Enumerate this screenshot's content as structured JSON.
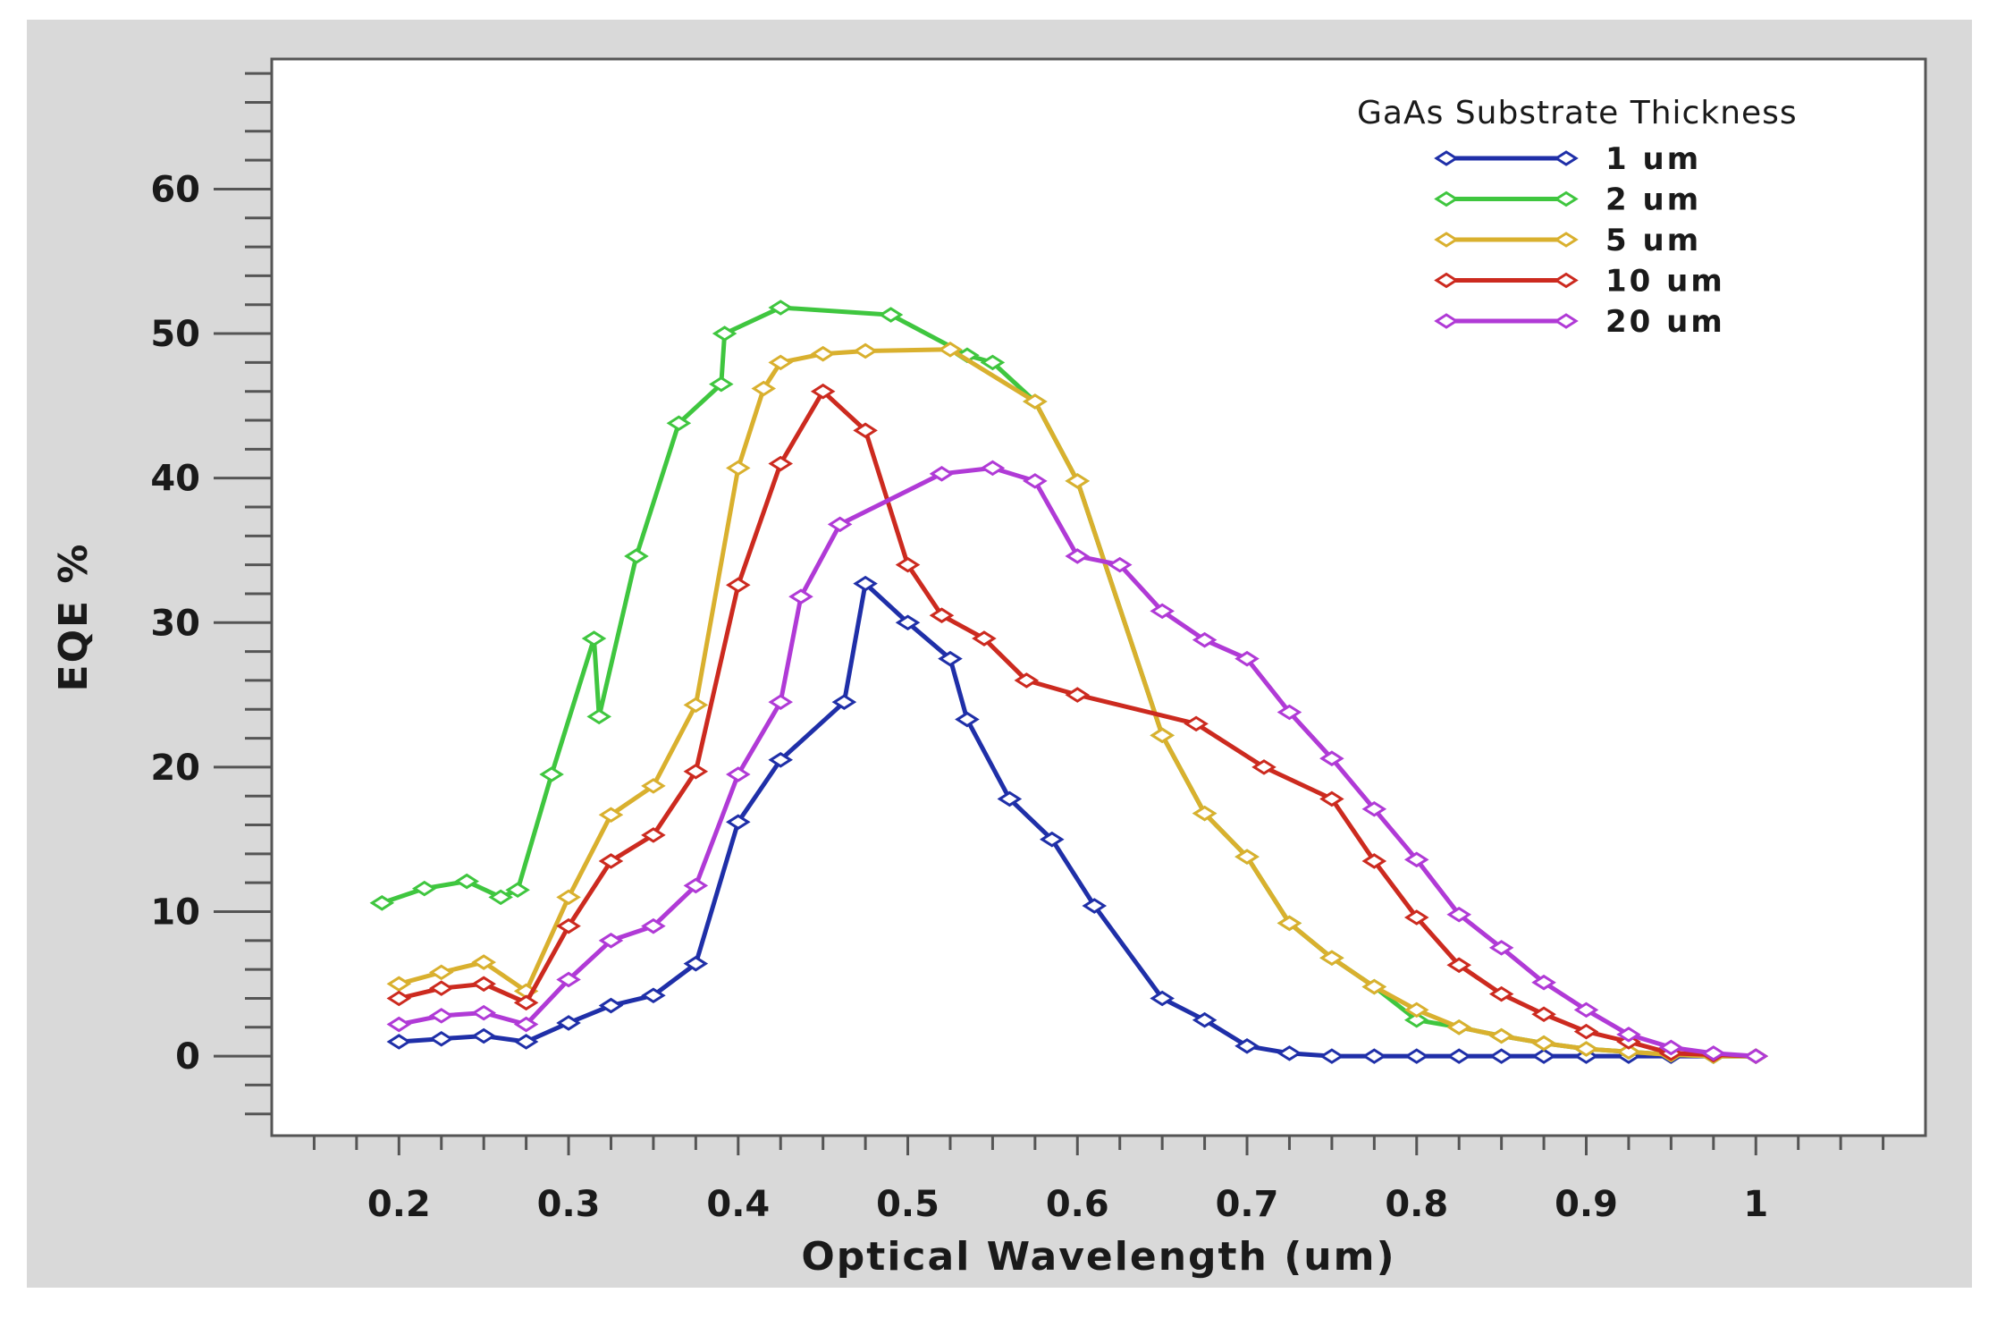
{
  "chart_data": {
    "type": "line",
    "title": "",
    "xlabel": "Optical Wavelength (um)",
    "ylabel": "EQE %",
    "xlim": [
      0.125,
      1.1
    ],
    "ylim": [
      -5.5,
      69
    ],
    "xticks": [
      0.2,
      0.3,
      0.4,
      0.5,
      0.6,
      0.7,
      0.8,
      0.9,
      1
    ],
    "xtick_labels": [
      "0.2",
      "0.3",
      "0.4",
      "0.5",
      "0.6",
      "0.7",
      "0.8",
      "0.9",
      "1"
    ],
    "yticks": [
      0,
      10,
      20,
      30,
      40,
      50,
      60
    ],
    "ytick_labels": [
      "0",
      "10",
      "20",
      "30",
      "40",
      "50",
      "60"
    ],
    "legend": {
      "title": "GaAs Substrate Thickness",
      "position": "top-right"
    },
    "series": [
      {
        "name": "1  um",
        "color": "#1f2fa8",
        "x": [
          0.2,
          0.225,
          0.25,
          0.275,
          0.3,
          0.325,
          0.35,
          0.375,
          0.4,
          0.425,
          0.4625,
          0.475,
          0.5,
          0.525,
          0.535,
          0.56,
          0.585,
          0.61,
          0.65,
          0.675,
          0.7,
          0.725,
          0.75,
          0.775,
          0.8,
          0.825,
          0.85,
          0.875,
          0.9,
          0.925,
          0.95,
          0.975,
          1.0
        ],
        "values": [
          1.0,
          1.2,
          1.4,
          1.0,
          2.3,
          3.5,
          4.2,
          6.4,
          16.2,
          20.5,
          24.5,
          32.7,
          30.0,
          27.5,
          23.3,
          17.8,
          15.0,
          10.4,
          4.0,
          2.5,
          0.7,
          0.2,
          0.0,
          0.0,
          0.0,
          0.0,
          0.0,
          0.0,
          0.0,
          0.0,
          0.0,
          0.0,
          0.0
        ]
      },
      {
        "name": "2  um",
        "color": "#3fc63f",
        "x": [
          0.19,
          0.215,
          0.24,
          0.26,
          0.27,
          0.29,
          0.315,
          0.318,
          0.34,
          0.365,
          0.39,
          0.392,
          0.425,
          0.49,
          0.535,
          0.55,
          0.575,
          0.6,
          0.65,
          0.675,
          0.7,
          0.725,
          0.75,
          0.775,
          0.8,
          0.825,
          0.85,
          0.875,
          0.9,
          0.925,
          0.95,
          0.975,
          1.0
        ],
        "values": [
          10.6,
          11.6,
          12.1,
          11.0,
          11.5,
          19.5,
          28.9,
          23.5,
          34.6,
          43.8,
          46.5,
          50.0,
          51.8,
          51.3,
          48.5,
          48.0,
          45.3,
          39.8,
          22.2,
          16.8,
          13.8,
          9.2,
          6.8,
          4.8,
          2.5,
          2.0,
          1.4,
          0.9,
          0.5,
          0.3,
          0.1,
          0.0,
          0.0
        ]
      },
      {
        "name": "5  um",
        "color": "#d9b02e",
        "x": [
          0.2,
          0.225,
          0.25,
          0.275,
          0.3,
          0.325,
          0.35,
          0.375,
          0.4,
          0.415,
          0.425,
          0.45,
          0.475,
          0.525,
          0.575,
          0.6,
          0.65,
          0.675,
          0.7,
          0.725,
          0.75,
          0.775,
          0.8,
          0.825,
          0.85,
          0.875,
          0.9,
          0.925,
          0.95,
          0.975,
          1.0
        ],
        "values": [
          5.0,
          5.8,
          6.5,
          4.5,
          11.0,
          16.7,
          18.7,
          24.3,
          40.7,
          46.2,
          48.0,
          48.6,
          48.8,
          48.9,
          45.3,
          39.8,
          22.2,
          16.8,
          13.8,
          9.2,
          6.8,
          4.8,
          3.2,
          2.0,
          1.4,
          0.9,
          0.5,
          0.3,
          0.1,
          0.0,
          0.0
        ]
      },
      {
        "name": "10 um",
        "color": "#cc2a1f",
        "x": [
          0.2,
          0.225,
          0.25,
          0.275,
          0.3,
          0.325,
          0.35,
          0.375,
          0.4,
          0.425,
          0.45,
          0.475,
          0.5,
          0.52,
          0.545,
          0.57,
          0.6,
          0.67,
          0.71,
          0.75,
          0.775,
          0.8,
          0.825,
          0.85,
          0.875,
          0.9,
          0.925,
          0.95,
          0.975,
          1.0
        ],
        "values": [
          4.0,
          4.7,
          5.0,
          3.7,
          9.0,
          13.5,
          15.3,
          19.7,
          32.6,
          41.0,
          46.0,
          43.3,
          34.0,
          30.5,
          28.9,
          26.0,
          25.0,
          23.0,
          20.0,
          17.8,
          13.5,
          9.6,
          6.3,
          4.3,
          2.9,
          1.7,
          1.0,
          0.2,
          0.1,
          0.0
        ]
      },
      {
        "name": "20 um",
        "color": "#b03ad6",
        "x": [
          0.2,
          0.225,
          0.25,
          0.275,
          0.3,
          0.325,
          0.35,
          0.375,
          0.4,
          0.425,
          0.437,
          0.46,
          0.52,
          0.55,
          0.575,
          0.6,
          0.625,
          0.65,
          0.675,
          0.7,
          0.725,
          0.75,
          0.775,
          0.8,
          0.825,
          0.85,
          0.875,
          0.9,
          0.925,
          0.95,
          0.975,
          1.0
        ],
        "values": [
          2.2,
          2.8,
          3.0,
          2.2,
          5.3,
          8.0,
          9.0,
          11.8,
          19.5,
          24.5,
          31.8,
          36.8,
          40.3,
          40.7,
          39.8,
          34.6,
          34.0,
          30.8,
          28.8,
          27.5,
          23.8,
          20.6,
          17.1,
          13.6,
          9.8,
          7.5,
          5.1,
          3.2,
          1.5,
          0.6,
          0.2,
          0.0
        ]
      }
    ]
  }
}
